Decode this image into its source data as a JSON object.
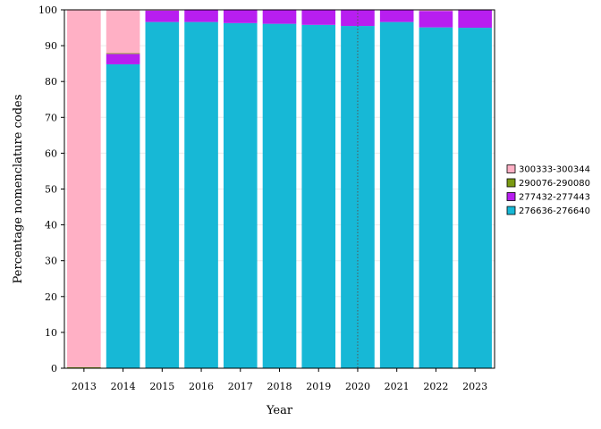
{
  "chart_data": {
    "type": "bar",
    "stacked": true,
    "xlabel": "Year",
    "ylabel": "Percentage nomenclature codes",
    "ylim": [
      0,
      100
    ],
    "yticks": [
      0,
      10,
      20,
      30,
      40,
      50,
      60,
      70,
      80,
      90,
      100
    ],
    "categories": [
      "2013",
      "2014",
      "2015",
      "2016",
      "2017",
      "2018",
      "2019",
      "2020",
      "2021",
      "2022",
      "2023"
    ],
    "series": [
      {
        "name": "276636-276640",
        "color": "#17b8d6",
        "values": [
          0,
          84.8,
          96.6,
          96.6,
          96.3,
          96.1,
          95.8,
          95.5,
          96.6,
          95.1,
          95.0
        ]
      },
      {
        "name": "277432-277443",
        "color": "#b81ef0",
        "values": [
          0,
          2.9,
          3.2,
          3.4,
          3.7,
          3.9,
          4.2,
          4.5,
          3.4,
          4.6,
          5.0
        ]
      },
      {
        "name": "290076-290080",
        "color": "#7a9a12",
        "values": [
          0.3,
          0.2,
          0,
          0,
          0,
          0,
          0,
          0,
          0,
          0,
          0
        ]
      },
      {
        "name": "300333-300344",
        "color": "#ffb0c5",
        "values": [
          99.7,
          12.1,
          0.2,
          0,
          0,
          0,
          0,
          0,
          0,
          0.3,
          0
        ]
      }
    ],
    "legend_order": [
      "300333-300344",
      "290076-290080",
      "277432-277443",
      "276636-276640"
    ],
    "legend_position": "right",
    "reference_line": {
      "x": "2020",
      "style": "dotted"
    },
    "grid": true
  }
}
